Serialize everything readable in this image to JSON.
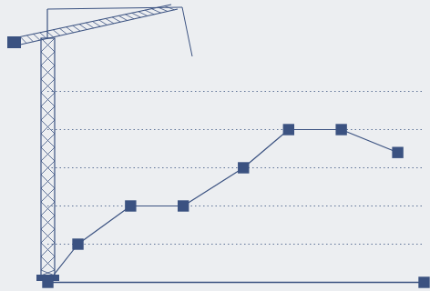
{
  "chart_data": {
    "type": "line",
    "x": [
      0,
      8,
      22,
      36,
      52,
      64,
      78,
      93
    ],
    "values": [
      0,
      1,
      2,
      2,
      3,
      4,
      4,
      3.4
    ],
    "color": "#3b5281",
    "marker": "square",
    "line_style": "solid",
    "xlim": [
      0,
      100
    ],
    "ylim": [
      0,
      5
    ],
    "yticks": [
      1,
      2,
      3,
      4,
      5
    ],
    "grid": true,
    "tick_labels": false
  }
}
